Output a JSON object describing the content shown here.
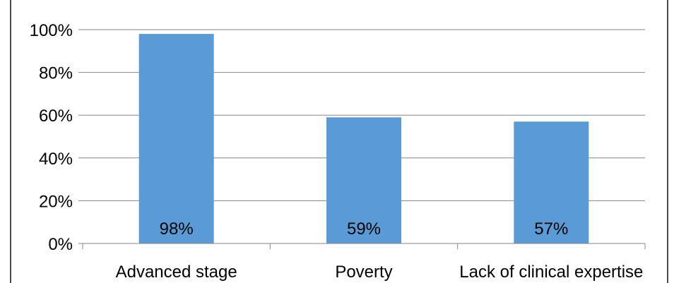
{
  "chart_data": {
    "type": "bar",
    "title": "",
    "xlabel": "",
    "ylabel": "",
    "categories": [
      "Advanced stage",
      "Poverty",
      "Lack of clinical expertise"
    ],
    "values": [
      98,
      59,
      57
    ],
    "data_labels": [
      "98%",
      "59%",
      "57%"
    ],
    "ylim": [
      0,
      100
    ],
    "y_ticks": [
      "0%",
      "20%",
      "40%",
      "60%",
      "80%",
      "100%"
    ],
    "y_tick_values": [
      0,
      20,
      40,
      60,
      80,
      100
    ],
    "grid": true,
    "legend": "none",
    "bar_color": "#5b9bd5",
    "grid_color": "#868686"
  }
}
